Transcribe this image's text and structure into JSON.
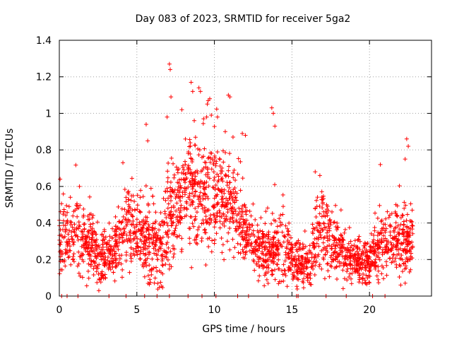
{
  "chart_data": {
    "type": "scatter",
    "title": "Day 083 of 2023, SRMTID for receiver 5ga2",
    "xlabel": "GPS time / hours",
    "ylabel": "SRMTID / TECUs",
    "xlim": [
      0,
      24
    ],
    "ylim": [
      0,
      1.4
    ],
    "x_ticks": [
      "0",
      "5",
      "10",
      "15",
      "20"
    ],
    "y_ticks": [
      "0",
      "0.2",
      "0.4",
      "0.6",
      "0.8",
      "1",
      "1.2",
      "1.4"
    ],
    "grid": true,
    "marker": "+",
    "colors": {
      "series": "#ff0000",
      "grid": "#a0a0a0",
      "axis": "#000000"
    },
    "envelope": {
      "hours": [
        0,
        0.5,
        1,
        1.5,
        2,
        2.5,
        3,
        3.5,
        4,
        4.5,
        5,
        5.5,
        6,
        6.5,
        7,
        7.5,
        8,
        8.5,
        9,
        9.5,
        10,
        10.5,
        11,
        11.5,
        12,
        12.5,
        13,
        13.5,
        14,
        14.5,
        15,
        15.5,
        16,
        16.5,
        17,
        17.5,
        18,
        18.5,
        19,
        19.5,
        20,
        20.5,
        21,
        21.5,
        22,
        22.5
      ],
      "median": [
        0.32,
        0.3,
        0.33,
        0.28,
        0.3,
        0.22,
        0.2,
        0.24,
        0.38,
        0.4,
        0.34,
        0.33,
        0.3,
        0.24,
        0.42,
        0.48,
        0.56,
        0.6,
        0.55,
        0.55,
        0.58,
        0.52,
        0.5,
        0.45,
        0.35,
        0.3,
        0.25,
        0.22,
        0.25,
        0.26,
        0.2,
        0.18,
        0.17,
        0.28,
        0.4,
        0.3,
        0.26,
        0.22,
        0.2,
        0.19,
        0.18,
        0.28,
        0.3,
        0.3,
        0.28,
        0.3
      ],
      "spread": [
        0.13,
        0.12,
        0.14,
        0.12,
        0.12,
        0.1,
        0.09,
        0.1,
        0.13,
        0.14,
        0.13,
        0.14,
        0.15,
        0.13,
        0.2,
        0.18,
        0.2,
        0.2,
        0.19,
        0.19,
        0.19,
        0.18,
        0.17,
        0.16,
        0.13,
        0.11,
        0.1,
        0.1,
        0.13,
        0.12,
        0.09,
        0.08,
        0.08,
        0.14,
        0.15,
        0.11,
        0.1,
        0.09,
        0.08,
        0.08,
        0.08,
        0.11,
        0.11,
        0.11,
        0.13,
        0.11
      ]
    },
    "peaks": [
      {
        "x": 0.05,
        "y": 0.64
      },
      {
        "x": 1.3,
        "y": 0.6
      },
      {
        "x": 4.1,
        "y": 0.73
      },
      {
        "x": 5.6,
        "y": 0.94
      },
      {
        "x": 5.7,
        "y": 0.85
      },
      {
        "x": 6.95,
        "y": 0.98
      },
      {
        "x": 7.1,
        "y": 1.27
      },
      {
        "x": 7.15,
        "y": 1.24
      },
      {
        "x": 7.2,
        "y": 1.09
      },
      {
        "x": 7.9,
        "y": 1.02
      },
      {
        "x": 8.5,
        "y": 1.17
      },
      {
        "x": 8.6,
        "y": 1.12
      },
      {
        "x": 8.7,
        "y": 0.96
      },
      {
        "x": 9.0,
        "y": 1.14
      },
      {
        "x": 9.1,
        "y": 1.12
      },
      {
        "x": 9.5,
        "y": 0.98
      },
      {
        "x": 9.6,
        "y": 1.07
      },
      {
        "x": 9.7,
        "y": 1.08
      },
      {
        "x": 9.8,
        "y": 0.99
      },
      {
        "x": 10.2,
        "y": 0.98
      },
      {
        "x": 10.7,
        "y": 0.9
      },
      {
        "x": 10.9,
        "y": 1.1
      },
      {
        "x": 11.0,
        "y": 1.09
      },
      {
        "x": 11.2,
        "y": 0.87
      },
      {
        "x": 11.8,
        "y": 0.89
      },
      {
        "x": 12.0,
        "y": 0.88
      },
      {
        "x": 13.7,
        "y": 1.03
      },
      {
        "x": 13.8,
        "y": 1.0
      },
      {
        "x": 13.9,
        "y": 0.93
      },
      {
        "x": 16.5,
        "y": 0.68
      },
      {
        "x": 16.8,
        "y": 0.66
      },
      {
        "x": 20.7,
        "y": 0.72
      },
      {
        "x": 22.4,
        "y": 0.86
      },
      {
        "x": 22.5,
        "y": 0.82
      },
      {
        "x": 22.3,
        "y": 0.75
      }
    ],
    "zero_points": [
      0.15,
      0.5,
      1.2,
      3.2,
      4.3,
      5.5,
      6.3,
      7.1,
      8.3,
      9.2,
      10.1,
      11.5,
      12.2,
      14.1,
      15.3,
      15.4,
      17.2,
      18.5,
      20.2,
      21.0
    ]
  }
}
